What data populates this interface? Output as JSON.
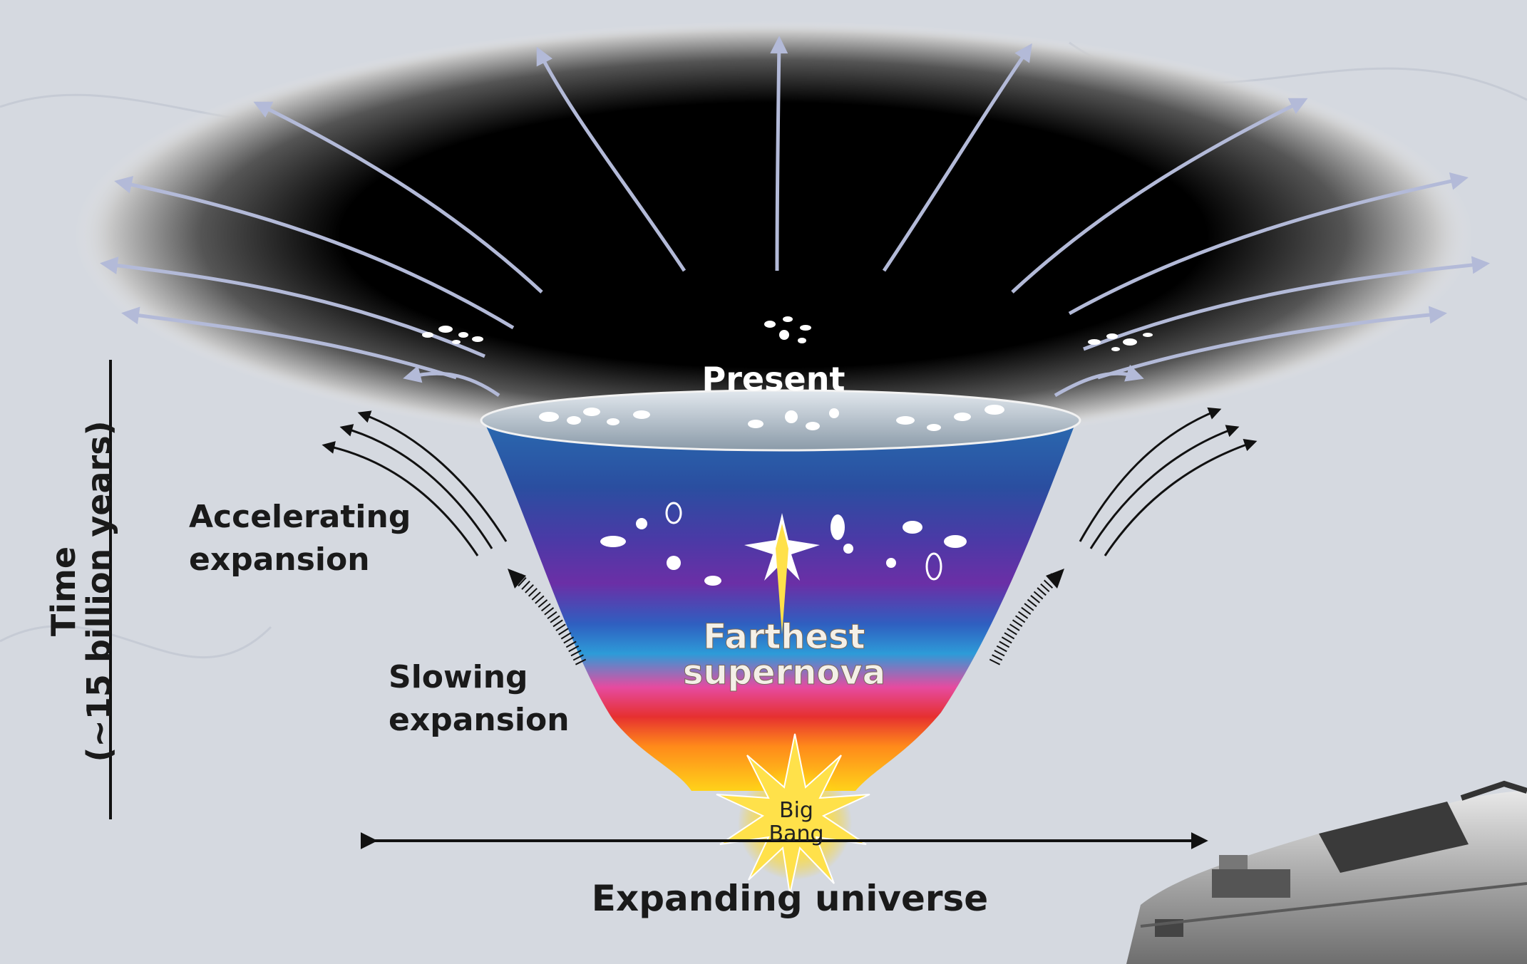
{
  "labels": {
    "present": "Present",
    "farthest_supernova_line1": "Farthest",
    "farthest_supernova_line2": "supernova",
    "big_bang_line1": "Big",
    "big_bang_line2": "Bang",
    "accelerating_line1": "Accelerating",
    "accelerating_line2": "expansion",
    "slowing_line1": "Slowing",
    "slowing_line2": "expansion",
    "time_axis_line1": "Time",
    "time_axis_line2": "(~15 billion years)",
    "expanding_universe": "Expanding universe"
  },
  "colors": {
    "background": "#d5d9e0",
    "space_black": "#000000",
    "expansion_arrow": "#b3bad8",
    "label_dark": "#1a1a1a",
    "label_light": "#ffffff",
    "supernova_label": "#f4f0e8",
    "big_bang_glow": "#ffe14a"
  },
  "icons": {
    "car": "delorean-car-icon",
    "supernova": "supernova-star-icon",
    "big_bang": "big-bang-starburst-icon",
    "galaxies": "galaxy-cluster-icon"
  }
}
